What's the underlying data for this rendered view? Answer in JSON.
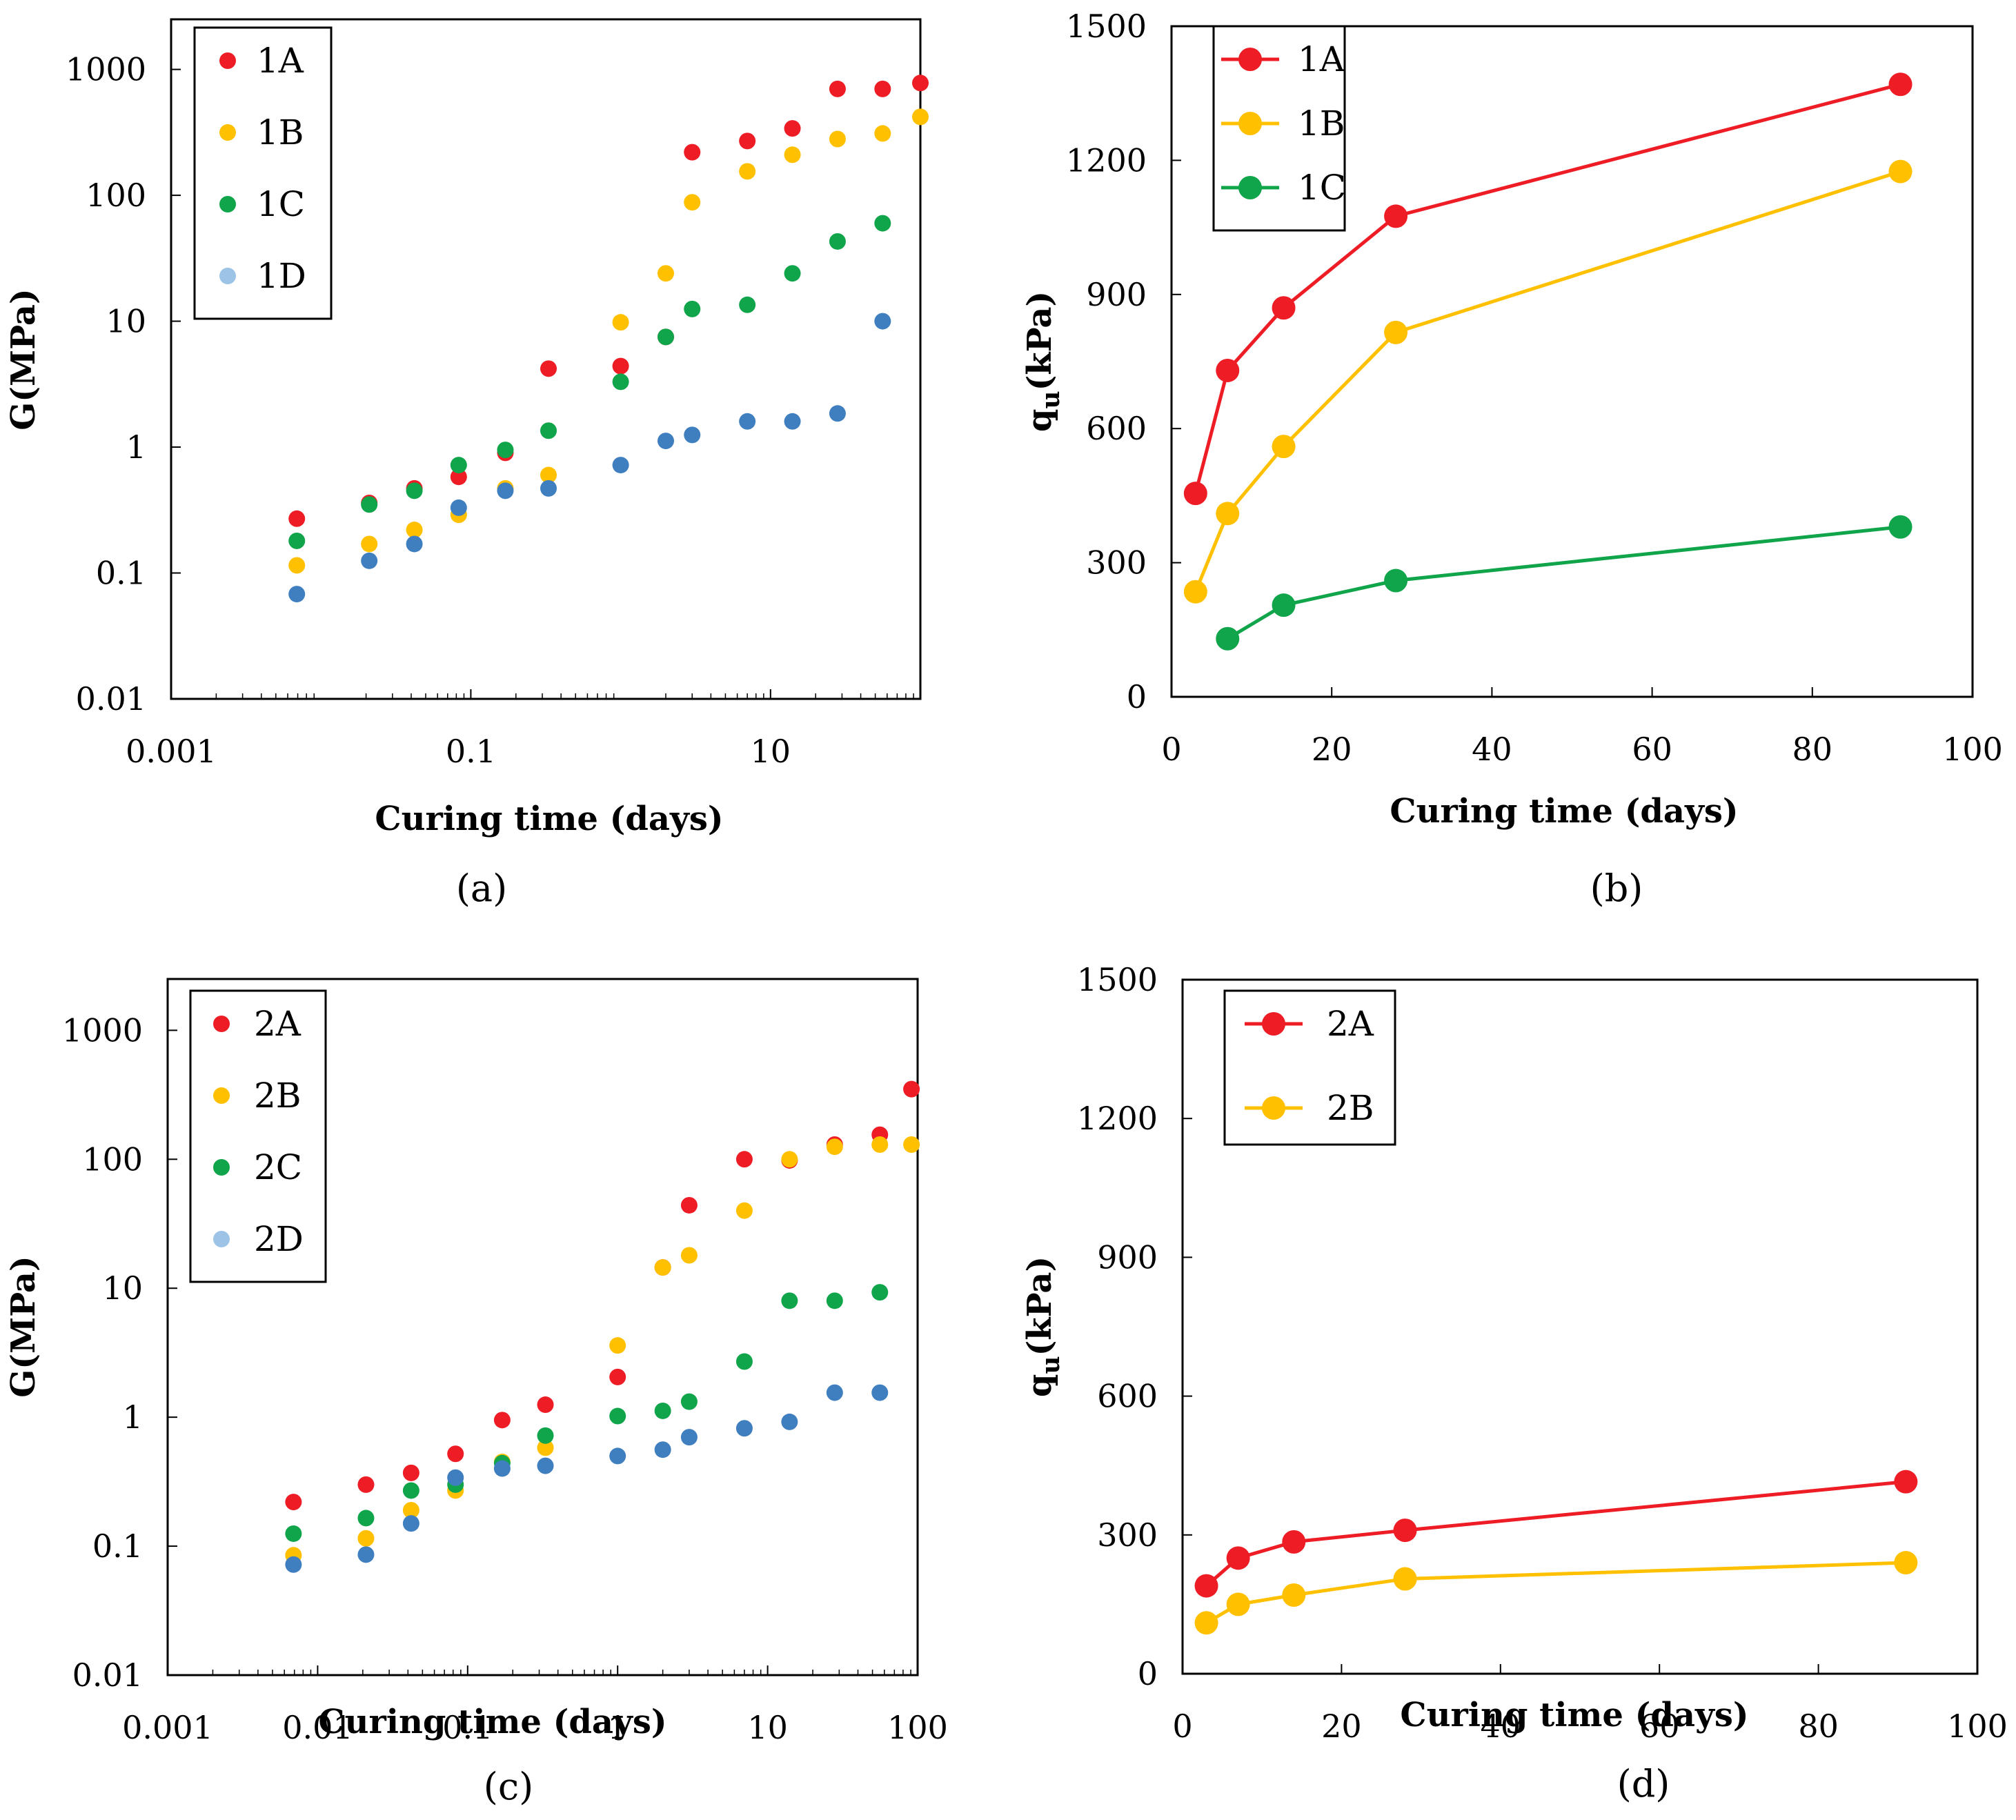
{
  "chart_data": [
    {
      "id": "a",
      "type": "scatter",
      "caption": "(a)",
      "xscale": "log",
      "yscale": "log",
      "xlabel": "Curing time (days)",
      "ylabel": "G(MPa)",
      "xlim": [
        0.001,
        100
      ],
      "ylim": [
        0.01,
        2500
      ],
      "xticks": [
        {
          "v": 0.001,
          "label": "0.001"
        },
        {
          "v": 0.1,
          "label": "0.1"
        },
        {
          "v": 10,
          "label": "10"
        }
      ],
      "yticks": [
        {
          "v": 0.01,
          "label": "0.01"
        },
        {
          "v": 0.1,
          "label": "0.1"
        },
        {
          "v": 1,
          "label": "1"
        },
        {
          "v": 10,
          "label": "10"
        },
        {
          "v": 100,
          "label": "100"
        },
        {
          "v": 1000,
          "label": "1000"
        }
      ],
      "legend_position": "top-left",
      "series": [
        {
          "name": "1A",
          "color": "#ee1c25",
          "x": [
            0.0069,
            0.021,
            0.042,
            0.083,
            0.17,
            0.33,
            1,
            2,
            3,
            7,
            14,
            28,
            56,
            100
          ],
          "y": [
            0.27,
            0.36,
            0.47,
            0.58,
            0.9,
            4.2,
            4.4,
            7.5,
            220,
            270,
            340,
            700,
            700,
            780
          ]
        },
        {
          "name": "1B",
          "color": "#ffc000",
          "x": [
            0.0069,
            0.021,
            0.042,
            0.083,
            0.17,
            0.33,
            1,
            2,
            3,
            7,
            14,
            28,
            56,
            100
          ],
          "y": [
            0.115,
            0.17,
            0.22,
            0.29,
            0.47,
            0.6,
            9.8,
            24,
            88,
            155,
            210,
            280,
            310,
            420
          ]
        },
        {
          "name": "1C",
          "color": "#11a54b",
          "x": [
            0.0069,
            0.021,
            0.042,
            0.083,
            0.17,
            0.33,
            1,
            2,
            3,
            7,
            14,
            28,
            56
          ],
          "y": [
            0.18,
            0.35,
            0.45,
            0.72,
            0.95,
            1.35,
            3.3,
            7.5,
            12.5,
            13.5,
            24,
            43,
            60
          ]
        },
        {
          "name": "1D",
          "color": "#3f7fbf",
          "legend_color": "#9dc3e6",
          "x": [
            0.0069,
            0.021,
            0.042,
            0.083,
            0.17,
            0.33,
            1,
            2,
            3,
            7,
            14,
            28,
            56
          ],
          "y": [
            0.068,
            0.125,
            0.17,
            0.33,
            0.45,
            0.47,
            0.72,
            1.12,
            1.25,
            1.6,
            1.6,
            1.85,
            10
          ]
        }
      ]
    },
    {
      "id": "b",
      "type": "line",
      "caption": "(b)",
      "xlabel": "Curing time (days)",
      "ylabel_main": "q",
      "ylabel_sub": "u",
      "ylabel_rest": "(kPa)",
      "xlim": [
        0,
        100
      ],
      "ylim": [
        0,
        1500
      ],
      "xticks": [
        {
          "v": 0,
          "label": "0"
        },
        {
          "v": 20,
          "label": "20"
        },
        {
          "v": 40,
          "label": "40"
        },
        {
          "v": 60,
          "label": "60"
        },
        {
          "v": 80,
          "label": "80"
        },
        {
          "v": 100,
          "label": "100"
        }
      ],
      "yticks": [
        {
          "v": 0,
          "label": "0"
        },
        {
          "v": 300,
          "label": "300"
        },
        {
          "v": 600,
          "label": "600"
        },
        {
          "v": 900,
          "label": "900"
        },
        {
          "v": 1200,
          "label": "1200"
        },
        {
          "v": 1500,
          "label": "1500"
        }
      ],
      "legend_position": "top-left",
      "series": [
        {
          "name": "1A",
          "color": "#ee1c25",
          "x": [
            3,
            7,
            14,
            28,
            91
          ],
          "y": [
            455,
            730,
            870,
            1075,
            1370
          ]
        },
        {
          "name": "1B",
          "color": "#ffc000",
          "x": [
            3,
            7,
            14,
            28,
            91
          ],
          "y": [
            235,
            410,
            560,
            815,
            1175
          ]
        },
        {
          "name": "1C",
          "color": "#11a54b",
          "x": [
            7,
            14,
            28,
            91
          ],
          "y": [
            130,
            205,
            260,
            380
          ]
        }
      ]
    },
    {
      "id": "c",
      "type": "scatter",
      "caption": "(c)",
      "xscale": "log",
      "yscale": "log",
      "xlabel": "Curing time (days)",
      "ylabel": "G(MPa)",
      "xlim": [
        0.001,
        100
      ],
      "ylim": [
        0.01,
        2500
      ],
      "xticks": [
        {
          "v": 0.001,
          "label": "0.001"
        },
        {
          "v": 0.01,
          "label": "0.01"
        },
        {
          "v": 0.1,
          "label": "0.1"
        },
        {
          "v": 1,
          "label": "1"
        },
        {
          "v": 10,
          "label": "10"
        },
        {
          "v": 100,
          "label": "100"
        }
      ],
      "yticks": [
        {
          "v": 0.01,
          "label": "0.01"
        },
        {
          "v": 0.1,
          "label": "0.1"
        },
        {
          "v": 1,
          "label": "1"
        },
        {
          "v": 10,
          "label": "10"
        },
        {
          "v": 100,
          "label": "100"
        },
        {
          "v": 1000,
          "label": "1000"
        }
      ],
      "legend_position": "top-left",
      "series": [
        {
          "name": "2A",
          "color": "#ee1c25",
          "x": [
            0.0069,
            0.021,
            0.042,
            0.083,
            0.17,
            0.33,
            1,
            2,
            3,
            7,
            14,
            28,
            56,
            91
          ],
          "y": [
            0.22,
            0.3,
            0.37,
            0.52,
            0.95,
            1.25,
            2.05,
            14.5,
            44,
            100,
            98,
            130,
            155,
            350
          ]
        },
        {
          "name": "2B",
          "color": "#ffc000",
          "x": [
            0.0069,
            0.021,
            0.042,
            0.083,
            0.17,
            0.33,
            1,
            2,
            3,
            7,
            14,
            28,
            56,
            91
          ],
          "y": [
            0.085,
            0.115,
            0.19,
            0.27,
            0.45,
            0.58,
            3.6,
            14.5,
            18,
            40,
            100,
            125,
            130,
            130
          ]
        },
        {
          "name": "2C",
          "color": "#11a54b",
          "x": [
            0.0069,
            0.021,
            0.042,
            0.083,
            0.17,
            0.33,
            1,
            2,
            3,
            7,
            14,
            28,
            56
          ],
          "y": [
            0.125,
            0.165,
            0.27,
            0.3,
            0.44,
            0.72,
            1.02,
            1.12,
            1.32,
            2.7,
            8,
            8,
            9.3
          ]
        },
        {
          "name": "2D",
          "color": "#3f7fbf",
          "legend_color": "#9dc3e6",
          "x": [
            0.0069,
            0.021,
            0.042,
            0.083,
            0.17,
            0.33,
            1,
            2,
            3,
            7,
            14,
            28,
            56
          ],
          "y": [
            0.072,
            0.086,
            0.15,
            0.34,
            0.4,
            0.42,
            0.5,
            0.56,
            0.7,
            0.82,
            0.92,
            1.55,
            1.55
          ]
        }
      ]
    },
    {
      "id": "d",
      "type": "line",
      "caption": "(d)",
      "xlabel": "Curing time (days)",
      "ylabel_main": "q",
      "ylabel_sub": "u",
      "ylabel_rest": "(kPa)",
      "xlim": [
        0,
        100
      ],
      "ylim": [
        0,
        1500
      ],
      "xticks": [
        {
          "v": 0,
          "label": "0"
        },
        {
          "v": 20,
          "label": "20"
        },
        {
          "v": 40,
          "label": "40"
        },
        {
          "v": 60,
          "label": "60"
        },
        {
          "v": 80,
          "label": "80"
        },
        {
          "v": 100,
          "label": "100"
        }
      ],
      "yticks": [
        {
          "v": 0,
          "label": "0"
        },
        {
          "v": 300,
          "label": "300"
        },
        {
          "v": 600,
          "label": "600"
        },
        {
          "v": 900,
          "label": "900"
        },
        {
          "v": 1200,
          "label": "1200"
        },
        {
          "v": 1500,
          "label": "1500"
        }
      ],
      "legend_position": "top-left",
      "series": [
        {
          "name": "2A",
          "color": "#ee1c25",
          "x": [
            3,
            7,
            14,
            28,
            91
          ],
          "y": [
            190,
            250,
            285,
            310,
            415
          ]
        },
        {
          "name": "2B",
          "color": "#ffc000",
          "x": [
            3,
            7,
            14,
            28,
            91
          ],
          "y": [
            110,
            150,
            170,
            205,
            240
          ]
        }
      ]
    }
  ]
}
